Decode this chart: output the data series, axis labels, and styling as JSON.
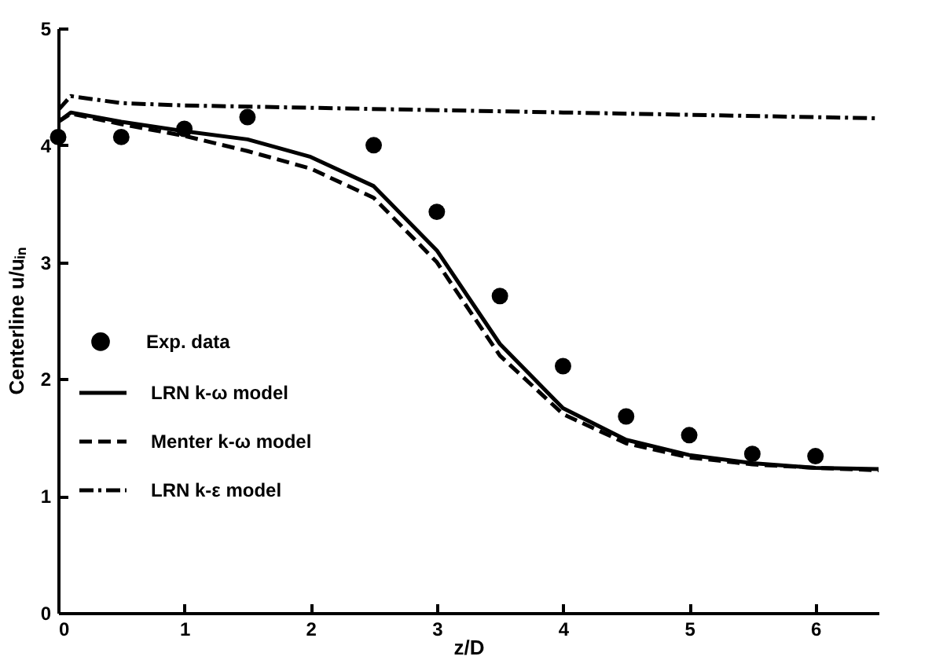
{
  "chart_data": {
    "type": "line",
    "xlabel": "z/D",
    "ylabel": "Centerline u/uᵢₙ",
    "xlim": [
      0,
      6.5
    ],
    "xticks": [
      0,
      1,
      2,
      3,
      4,
      5,
      6
    ],
    "ylim": [
      0,
      5
    ],
    "yticks": [
      0,
      1,
      2,
      3,
      4,
      5
    ],
    "grid": false,
    "legend": "bottom left",
    "series": [
      {
        "name": "Exp. data",
        "type": "scatter",
        "marker": "circle",
        "color": "#000000",
        "x": [
          0,
          0.5,
          1,
          1.5,
          2.5,
          3,
          3.5,
          4,
          4.5,
          5,
          5.5,
          6
        ],
        "values": [
          4.07,
          4.07,
          4.14,
          4.24,
          4.0,
          3.43,
          2.71,
          2.11,
          1.68,
          1.52,
          1.36,
          1.34
        ]
      },
      {
        "name": "LRN k-ω model",
        "type": "line",
        "line_style": "solid",
        "color": "#000000",
        "x": [
          0,
          0.1,
          0.5,
          1,
          1.5,
          2,
          2.5,
          3,
          3.25,
          3.5,
          4,
          4.5,
          5,
          5.5,
          6,
          6.5
        ],
        "values": [
          4.2,
          4.28,
          4.2,
          4.12,
          4.05,
          3.9,
          3.65,
          3.1,
          2.7,
          2.3,
          1.75,
          1.48,
          1.35,
          1.28,
          1.24,
          1.23
        ]
      },
      {
        "name": "Menter k-ω model",
        "type": "line",
        "line_style": "dashed",
        "color": "#000000",
        "x": [
          0,
          0.1,
          0.5,
          1,
          1.5,
          2,
          2.5,
          3,
          3.25,
          3.5,
          4,
          4.5,
          5,
          5.5,
          6,
          6.5
        ],
        "values": [
          4.2,
          4.27,
          4.18,
          4.08,
          3.95,
          3.8,
          3.55,
          3.0,
          2.6,
          2.2,
          1.7,
          1.45,
          1.33,
          1.27,
          1.24,
          1.22
        ]
      },
      {
        "name": "LRN k-ε model",
        "type": "line",
        "line_style": "dashdot",
        "color": "#000000",
        "x": [
          0,
          0.1,
          0.5,
          1,
          2,
          3,
          4,
          5,
          6.5
        ],
        "values": [
          4.3,
          4.42,
          4.36,
          4.34,
          4.32,
          4.3,
          4.28,
          4.26,
          4.23
        ]
      }
    ]
  }
}
